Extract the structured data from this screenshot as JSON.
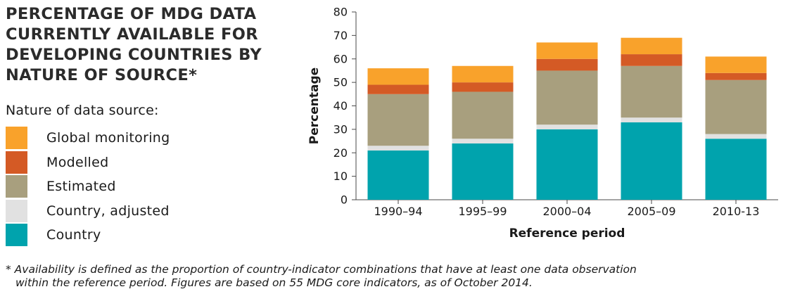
{
  "title_lines": [
    "PERCENTAGE OF MDG DATA",
    "CURRENTLY AVAILABLE FOR",
    "DEVELOPING COUNTRIES BY",
    "NATURE OF SOURCE*"
  ],
  "legend_heading": "Nature of data source:",
  "footnote": [
    "* Availability is defined as the proportion of country-indicator combinations that have at least one data observation",
    "within the reference period. Figures are based on 55 MDG core indicators, as of October 2014."
  ],
  "chart_data": {
    "type": "bar",
    "stacked": true,
    "categories": [
      "1990–94",
      "1995–99",
      "2000–04",
      "2005–09",
      "2010-13"
    ],
    "series": [
      {
        "name": "Country",
        "color": "#00a3ad",
        "values": [
          21,
          24,
          30,
          33,
          26
        ]
      },
      {
        "name": "Country, adjusted",
        "color": "#e1e1e1",
        "values": [
          2,
          2,
          2,
          2,
          2
        ]
      },
      {
        "name": "Estimated",
        "color": "#a89f7e",
        "values": [
          22,
          20,
          23,
          22,
          23
        ]
      },
      {
        "name": "Modelled",
        "color": "#d45a25",
        "values": [
          4,
          4,
          5,
          5,
          3
        ]
      },
      {
        "name": "Global monitoring",
        "color": "#f9a22b",
        "values": [
          7,
          7,
          7,
          7,
          7
        ]
      }
    ],
    "xlabel": "Reference period",
    "ylabel": "Percentage",
    "ylim": [
      0,
      80
    ],
    "yticks": [
      0,
      10,
      20,
      30,
      40,
      50,
      60,
      70,
      80
    ],
    "grid": false,
    "legend": {
      "placement": "left",
      "order": [
        "Global monitoring",
        "Modelled",
        "Estimated",
        "Country, adjusted",
        "Country"
      ]
    }
  }
}
